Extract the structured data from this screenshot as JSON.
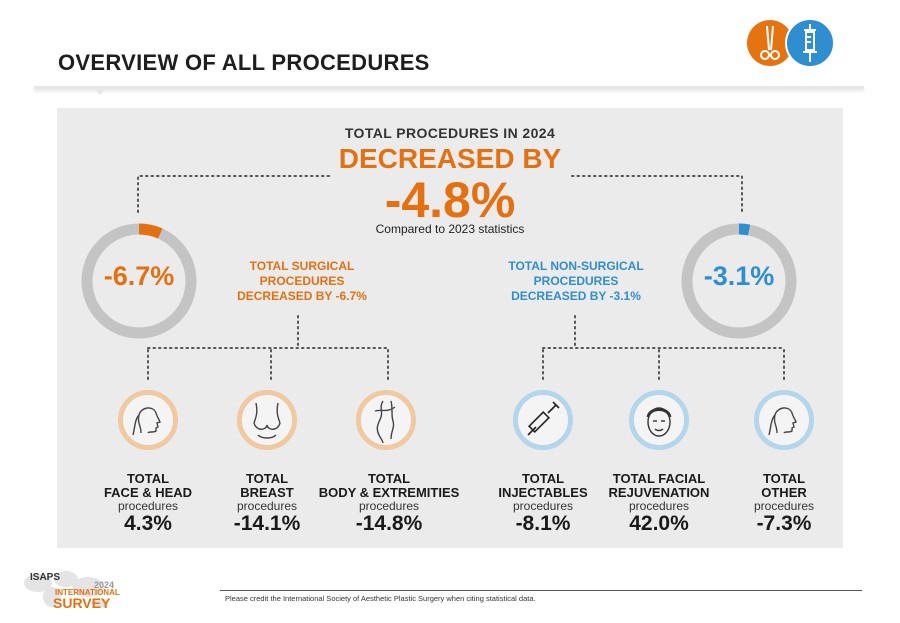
{
  "page": {
    "title": "OVERVIEW OF ALL PROCEDURES"
  },
  "summary": {
    "heading": "TOTAL PROCEDURES IN 2024",
    "direction": "DECREASED BY",
    "change": "-4.8%",
    "note": "Compared to 2023 statistics"
  },
  "surgical": {
    "ring_value": "-6.7%",
    "ring_fraction": 0.067,
    "title_line1": "TOTAL SURGICAL",
    "title_line2": "PROCEDURES",
    "title_line3": "DECREASED BY -6.7%"
  },
  "non_surgical": {
    "ring_value": "-3.1%",
    "ring_fraction": 0.031,
    "title_line1": "TOTAL NON-SURGICAL",
    "title_line2": "PROCEDURES",
    "title_line3": "DECREASED BY -3.1%"
  },
  "categories": [
    {
      "line1": "TOTAL",
      "line2": "FACE & HEAD",
      "sub": "procedures",
      "value": "4.3%",
      "icon": "face-profile-icon"
    },
    {
      "line1": "TOTAL",
      "line2": "BREAST",
      "sub": "procedures",
      "value": "-14.1%",
      "icon": "breast-icon"
    },
    {
      "line1": "TOTAL",
      "line2": "BODY & EXTREMITIES",
      "sub": "procedures",
      "value": "-14.8%",
      "icon": "body-icon"
    },
    {
      "line1": "TOTAL",
      "line2": "INJECTABLES",
      "sub": "procedures",
      "value": "-8.1%",
      "icon": "syringe-icon"
    },
    {
      "line1": "TOTAL FACIAL",
      "line2": "REJUVENATION",
      "sub": "procedures",
      "value": "42.0%",
      "icon": "face-mask-icon"
    },
    {
      "line1": "TOTAL",
      "line2": "OTHER",
      "sub": "procedures",
      "value": "-7.3%",
      "icon": "face-profile-icon"
    }
  ],
  "footer": {
    "credit": "Please credit the International Society of Aesthetic Plastic Surgery when citing statistical data.",
    "logo_name": "ISAPS",
    "logo_year": "2024",
    "logo_line1": "INTERNATIONAL",
    "logo_line2": "SURVEY"
  },
  "colors": {
    "surgical": "#e37112",
    "non_surgical": "#2f8ecf",
    "ring_track": "#c4c4c4",
    "panel": "#ebebeb"
  }
}
